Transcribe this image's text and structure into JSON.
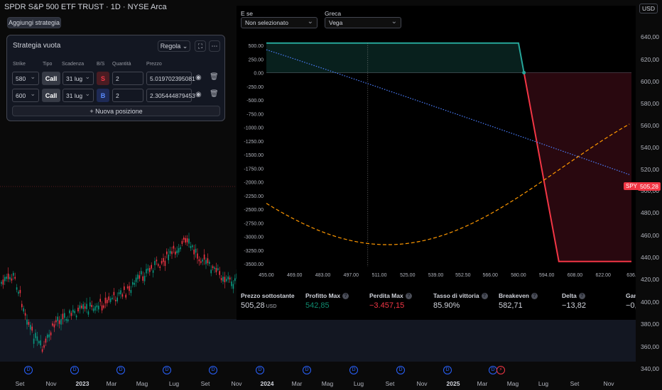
{
  "header": {
    "title": "SPDR S&P 500 ETF TRUST · 1D · NYSE Arca",
    "add_strategy": "Aggiungi strategia",
    "currency": "USD"
  },
  "strategy_panel": {
    "title": "Strategia vuota",
    "adjust_label": "Regola",
    "new_position": "+ Nuova posizione",
    "headers": {
      "strike": "Strike",
      "type": "Tipo",
      "expiry": "Scadenza",
      "bs": "B/S",
      "qty": "Quantità",
      "price": "Prezzo"
    },
    "rows": [
      {
        "strike": "580",
        "type": "Call",
        "expiry": "31 lug",
        "side": "S",
        "qty": "2",
        "price": "5.019702395081"
      },
      {
        "strike": "600",
        "type": "Call",
        "expiry": "31 lug",
        "side": "B",
        "qty": "2",
        "price": "2.305444879453"
      }
    ]
  },
  "pl_panel": {
    "what_if_label": "E se",
    "what_if_value": "Non selezionato",
    "greek_label": "Greca",
    "greek_value": "Vega",
    "y_ticks": [
      "500.00",
      "250.00",
      "0.00",
      "-250.00",
      "-500.00",
      "-750.00",
      "-1000.00",
      "-1250.00",
      "-1500.00",
      "-1750.00",
      "-2000.00",
      "-2250.00",
      "-2500.00",
      "-2750.00",
      "-3000.00",
      "-3250.00",
      "-3500.00"
    ],
    "x_ticks": [
      "455.00",
      "469.00",
      "483.00",
      "497.00",
      "511.00",
      "525.00",
      "539.00",
      "552.50",
      "566.00",
      "580.00",
      "594.00",
      "608.00",
      "622.00",
      "636."
    ],
    "stats": [
      {
        "label": "Prezzo sottostante",
        "value": "505,28",
        "unit": "USD",
        "color": "#d1d4dc",
        "help": false
      },
      {
        "label": "Profitto Max",
        "value": "542,85",
        "unit": "",
        "color": "#0f8a6e",
        "help": true
      },
      {
        "label": "Perdita Max",
        "value": "−3.457,15",
        "unit": "",
        "color": "#f23645",
        "help": true
      },
      {
        "label": "Tasso di vittoria",
        "value": "85.90%",
        "unit": "",
        "color": "#d1d4dc",
        "help": true
      },
      {
        "label": "Breakeven",
        "value": "582,71",
        "unit": "",
        "color": "#d1d4dc",
        "help": true
      },
      {
        "label": "Delta",
        "value": "−13,82",
        "unit": "",
        "color": "#d1d4dc",
        "help": true
      },
      {
        "label": "Gam",
        "value": "−0,",
        "unit": "",
        "color": "#d1d4dc",
        "help": false
      }
    ]
  },
  "price_axis": {
    "ticks": [
      "640,00",
      "620,00",
      "600,00",
      "580,00",
      "560,00",
      "540,00",
      "520,00",
      "500,00",
      "480,00",
      "460,00",
      "440,00",
      "420,00",
      "400,00",
      "380,00",
      "360,00",
      "340,00"
    ],
    "spy_tag": "SPY",
    "spy_price": "505,28"
  },
  "time_axis": {
    "labels": [
      "Set",
      "Nov",
      "2023",
      "Mar",
      "Mag",
      "Lug",
      "Set",
      "Nov",
      "2024",
      "Mar",
      "Mag",
      "Lug",
      "Set",
      "Nov",
      "2025",
      "Mar",
      "Mag",
      "Lug",
      "Set",
      "Nov"
    ],
    "dividend_marker": "D"
  },
  "chart_data": {
    "type": "line",
    "payoff": {
      "x": [
        455,
        580,
        636
      ],
      "y_note": "Max profit 542.85 up to 580, max loss -3457.15 beyond 600"
    },
    "breakeven": 582.71,
    "underlying": 505.28,
    "max_profit": 542.85,
    "max_loss": -3457.15
  },
  "colors": {
    "profit": "#26a69a",
    "loss": "#f23645",
    "accent": "#2962ff",
    "bg": "#0a0a0a"
  }
}
